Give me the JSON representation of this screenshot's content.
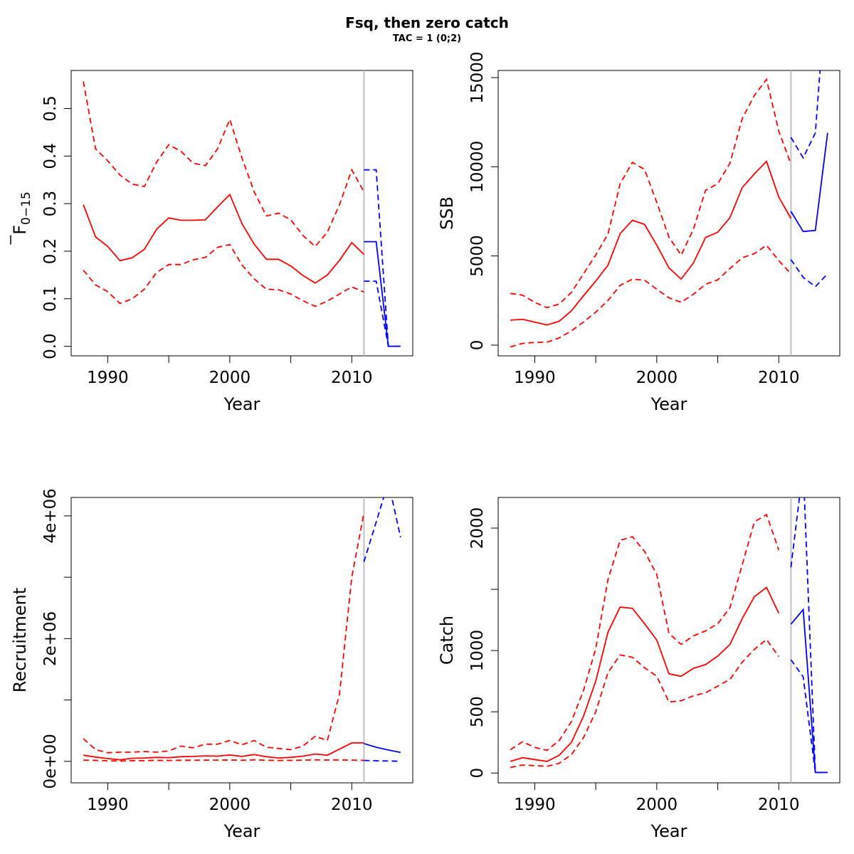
{
  "figure": {
    "title": "Fsq, then zero catch",
    "subtitle": "TAC = 1 (0;2)"
  },
  "colors": {
    "historical": "#ff0000",
    "forecast": "#0000ff",
    "divider": "#bebebe",
    "axis": "#000000"
  },
  "chart_data": [
    {
      "id": "f",
      "type": "line",
      "title": "",
      "xlabel": "Year",
      "ylabel": "F",
      "ylabel_sub": "0−15",
      "ylabel_overbar": true,
      "xlim": [
        1987,
        2015
      ],
      "ylim": [
        -0.02,
        0.58
      ],
      "xticks": [
        1990,
        1995,
        2000,
        2005,
        2010
      ],
      "xtick_labels": [
        "1990",
        "",
        "2000",
        "",
        "2010"
      ],
      "yticks": [
        0,
        0.1,
        0.2,
        0.3,
        0.4,
        0.5
      ],
      "ytick_labels": [
        "0.0",
        "0.1",
        "0.2",
        "0.3",
        "0.4",
        "0.5"
      ],
      "divider_x": 2011,
      "series": [
        {
          "style": "solid",
          "group": "historical",
          "x": [
            1988,
            1989,
            1990,
            1991,
            1992,
            1993,
            1994,
            1995,
            1996,
            1997,
            1998,
            1999,
            2000,
            2001,
            2002,
            2003,
            2004,
            2005,
            2006,
            2007,
            2008,
            2009,
            2010,
            2011
          ],
          "y": [
            0.298,
            0.23,
            0.21,
            0.18,
            0.186,
            0.204,
            0.246,
            0.27,
            0.265,
            0.265,
            0.266,
            0.293,
            0.319,
            0.258,
            0.215,
            0.183,
            0.183,
            0.169,
            0.149,
            0.133,
            0.15,
            0.181,
            0.218,
            0.193
          ]
        },
        {
          "style": "dashed",
          "group": "historical",
          "x": [
            1988,
            1989,
            1990,
            1991,
            1992,
            1993,
            1994,
            1995,
            1996,
            1997,
            1998,
            1999,
            2000,
            2001,
            2002,
            2003,
            2004,
            2005,
            2006,
            2007,
            2008,
            2009,
            2010,
            2011
          ],
          "y": [
            0.557,
            0.415,
            0.39,
            0.36,
            0.341,
            0.336,
            0.387,
            0.424,
            0.41,
            0.385,
            0.38,
            0.415,
            0.477,
            0.396,
            0.325,
            0.274,
            0.28,
            0.266,
            0.233,
            0.21,
            0.24,
            0.298,
            0.371,
            0.325
          ]
        },
        {
          "style": "dashed",
          "group": "historical",
          "x": [
            1988,
            1989,
            1990,
            1991,
            1992,
            1993,
            1994,
            1995,
            1996,
            1997,
            1998,
            1999,
            2000,
            2001,
            2002,
            2003,
            2004,
            2005,
            2006,
            2007,
            2008,
            2009,
            2010,
            2011
          ],
          "y": [
            0.16,
            0.129,
            0.115,
            0.09,
            0.1,
            0.12,
            0.155,
            0.172,
            0.172,
            0.182,
            0.187,
            0.208,
            0.214,
            0.171,
            0.142,
            0.12,
            0.119,
            0.11,
            0.096,
            0.084,
            0.095,
            0.11,
            0.125,
            0.114
          ]
        },
        {
          "style": "solid",
          "group": "forecast",
          "x": [
            2011,
            2012,
            2013,
            2014
          ],
          "y": [
            0.22,
            0.22,
            0,
            0
          ]
        },
        {
          "style": "dashed",
          "group": "forecast",
          "x": [
            2011,
            2012,
            2013,
            2014
          ],
          "y": [
            0.371,
            0.371,
            0,
            0
          ]
        },
        {
          "style": "dashed",
          "group": "forecast",
          "x": [
            2011,
            2012,
            2013,
            2014
          ],
          "y": [
            0.137,
            0.137,
            0,
            0
          ]
        }
      ]
    },
    {
      "id": "ssb",
      "type": "line",
      "title": "",
      "xlabel": "Year",
      "ylabel": "SSB",
      "xlim": [
        1987,
        2015
      ],
      "ylim": [
        -600,
        15400
      ],
      "xticks": [
        1990,
        1995,
        2000,
        2005,
        2010
      ],
      "xtick_labels": [
        "1990",
        "",
        "2000",
        "",
        "2010"
      ],
      "yticks": [
        0,
        5000,
        10000,
        15000
      ],
      "ytick_labels": [
        "0",
        "5000",
        "10000",
        "15000"
      ],
      "divider_x": 2011,
      "series": [
        {
          "style": "solid",
          "group": "historical",
          "x": [
            1988,
            1989,
            1990,
            1991,
            1992,
            1993,
            1994,
            1995,
            1996,
            1997,
            1998,
            1999,
            2000,
            2001,
            2002,
            2003,
            2004,
            2005,
            2006,
            2007,
            2008,
            2009,
            2010,
            2011
          ],
          "y": [
            1400,
            1450,
            1290,
            1130,
            1340,
            1920,
            2770,
            3590,
            4480,
            6250,
            7000,
            6770,
            5600,
            4330,
            3700,
            4600,
            6030,
            6330,
            7150,
            8830,
            9600,
            10300,
            8300,
            7100
          ]
        },
        {
          "style": "dashed",
          "group": "historical",
          "x": [
            1988,
            1989,
            1990,
            1991,
            1992,
            1993,
            1994,
            1995,
            1996,
            1997,
            1998,
            1999,
            2000,
            2001,
            2002,
            2003,
            2004,
            2005,
            2006,
            2007,
            2008,
            2009,
            2010,
            2011
          ],
          "y": [
            2900,
            2800,
            2400,
            2100,
            2300,
            2950,
            4000,
            5050,
            6230,
            9050,
            10250,
            9850,
            8000,
            6050,
            5050,
            6490,
            8680,
            9050,
            10200,
            12700,
            14000,
            14900,
            12000,
            10150
          ]
        },
        {
          "style": "dashed",
          "group": "historical",
          "x": [
            1988,
            1989,
            1990,
            1991,
            1992,
            1993,
            1994,
            1995,
            1996,
            1997,
            1998,
            1999,
            2000,
            2001,
            2002,
            2003,
            2004,
            2005,
            2006,
            2007,
            2008,
            2009,
            2010,
            2011
          ],
          "y": [
            -100,
            100,
            150,
            170,
            400,
            800,
            1300,
            1850,
            2500,
            3350,
            3700,
            3640,
            3130,
            2650,
            2400,
            2850,
            3410,
            3660,
            4300,
            4900,
            5130,
            5600,
            4740,
            4000
          ]
        },
        {
          "style": "solid",
          "group": "forecast",
          "x": [
            2011,
            2012,
            2013,
            2014
          ],
          "y": [
            7500,
            6370,
            6430,
            11900
          ]
        },
        {
          "style": "dashed",
          "group": "forecast",
          "x": [
            2011,
            2012,
            2013,
            2014
          ],
          "y": [
            11650,
            10500,
            11900,
            21000
          ]
        },
        {
          "style": "dashed",
          "group": "forecast",
          "x": [
            2011,
            2012,
            2013,
            2014
          ],
          "y": [
            4800,
            3800,
            3280,
            4000
          ]
        }
      ]
    },
    {
      "id": "recruitment",
      "type": "line",
      "title": "",
      "xlabel": "Year",
      "ylabel": "Recruitment",
      "xlim": [
        1987,
        2015
      ],
      "ylim": [
        -350000,
        4300000
      ],
      "xticks": [
        1990,
        1995,
        2000,
        2005,
        2010
      ],
      "xtick_labels": [
        "1990",
        "",
        "2000",
        "",
        "2010"
      ],
      "yticks": [
        0,
        1000000,
        2000000,
        3000000,
        4000000
      ],
      "ytick_labels": [
        "0e+00",
        "",
        "2e+06",
        "",
        "4e+06"
      ],
      "divider_x": 2011,
      "series": [
        {
          "style": "solid",
          "group": "historical",
          "x": [
            1988,
            1989,
            1990,
            1991,
            1992,
            1993,
            1994,
            1995,
            1996,
            1997,
            1998,
            1999,
            2000,
            2001,
            2002,
            2003,
            2004,
            2005,
            2006,
            2007,
            2008,
            2009,
            2010,
            2011
          ],
          "y": [
            100000,
            70000,
            45000,
            25000,
            50000,
            55000,
            65000,
            60000,
            75000,
            80000,
            90000,
            85000,
            105000,
            80000,
            110000,
            75000,
            55000,
            65000,
            85000,
            120000,
            100000,
            200000,
            300000,
            300000
          ]
        },
        {
          "style": "dashed",
          "group": "historical",
          "x": [
            1988,
            1989,
            1990,
            1991,
            1992,
            1993,
            1994,
            1995,
            1996,
            1997,
            1998,
            1999,
            2000,
            2001,
            2002,
            2003,
            2004,
            2005,
            2006,
            2007,
            2008,
            2009,
            2010,
            2011
          ],
          "y": [
            370000,
            190000,
            140000,
            150000,
            150000,
            160000,
            150000,
            170000,
            250000,
            220000,
            280000,
            280000,
            340000,
            270000,
            340000,
            230000,
            210000,
            190000,
            250000,
            410000,
            340000,
            1100000,
            3000000,
            4050000
          ]
        },
        {
          "style": "dashed",
          "group": "historical",
          "x": [
            1988,
            1989,
            1990,
            1991,
            1992,
            1993,
            1994,
            1995,
            1996,
            1997,
            1998,
            1999,
            2000,
            2001,
            2002,
            2003,
            2004,
            2005,
            2006,
            2007,
            2008,
            2009,
            2010,
            2011
          ],
          "y": [
            20000,
            15000,
            10000,
            5000,
            12000,
            12000,
            15000,
            14000,
            18000,
            18000,
            20000,
            20000,
            22000,
            18000,
            25000,
            18000,
            14000,
            15000,
            20000,
            25000,
            22000,
            25000,
            20000,
            15000
          ]
        },
        {
          "style": "solid",
          "group": "forecast",
          "x": [
            2011,
            2012,
            2013,
            2014
          ],
          "y": [
            290000,
            230000,
            185000,
            145000
          ]
        },
        {
          "style": "dashed",
          "group": "forecast",
          "x": [
            2011,
            2012,
            2013,
            2014
          ],
          "y": [
            3250000,
            3900000,
            4550000,
            3650000
          ]
        },
        {
          "style": "dashed",
          "group": "forecast",
          "x": [
            2011,
            2012,
            2013,
            2014
          ],
          "y": [
            15000,
            10000,
            5000,
            3000
          ]
        }
      ]
    },
    {
      "id": "catch",
      "type": "line",
      "title": "",
      "xlabel": "Year",
      "ylabel": "Catch",
      "xlim": [
        1987,
        2015
      ],
      "ylim": [
        -80,
        2250
      ],
      "xticks": [
        1990,
        1995,
        2000,
        2005,
        2010
      ],
      "xtick_labels": [
        "1990",
        "",
        "2000",
        "",
        "2010"
      ],
      "yticks": [
        0,
        500,
        1000,
        1500,
        2000
      ],
      "ytick_labels": [
        "0",
        "500",
        "1000",
        "",
        "2000"
      ],
      "divider_x": 2011,
      "series": [
        {
          "style": "solid",
          "group": "historical",
          "x": [
            1988,
            1989,
            1990,
            1991,
            1992,
            1993,
            1994,
            1995,
            1996,
            1997,
            1998,
            1999,
            2000,
            2001,
            2002,
            2003,
            2004,
            2005,
            2006,
            2007,
            2008,
            2009,
            2010
          ],
          "y": [
            95,
            125,
            110,
            95,
            145,
            250,
            465,
            750,
            1150,
            1355,
            1345,
            1220,
            1085,
            810,
            790,
            855,
            885,
            955,
            1050,
            1260,
            1440,
            1515,
            1305
          ]
        },
        {
          "style": "dashed",
          "group": "historical",
          "x": [
            1988,
            1989,
            1990,
            1991,
            1992,
            1993,
            1994,
            1995,
            1996,
            1997,
            1998,
            1999,
            2000,
            2001,
            2002,
            2003,
            2004,
            2005,
            2006,
            2007,
            2008,
            2009,
            2010
          ],
          "y": [
            190,
            255,
            210,
            185,
            265,
            420,
            675,
            1015,
            1580,
            1900,
            1930,
            1810,
            1620,
            1140,
            1050,
            1120,
            1160,
            1220,
            1350,
            1700,
            2050,
            2110,
            1820
          ]
        },
        {
          "style": "dashed",
          "group": "historical",
          "x": [
            1988,
            1989,
            1990,
            1991,
            1992,
            1993,
            1994,
            1995,
            1996,
            1997,
            1998,
            1999,
            2000,
            2001,
            2002,
            2003,
            2004,
            2005,
            2006,
            2007,
            2008,
            2009,
            2010
          ],
          "y": [
            45,
            65,
            60,
            55,
            80,
            150,
            290,
            500,
            820,
            965,
            945,
            860,
            790,
            580,
            590,
            630,
            655,
            710,
            765,
            905,
            1010,
            1090,
            950
          ]
        },
        {
          "style": "solid",
          "group": "forecast",
          "x": [
            2011,
            2012,
            2013,
            2014
          ],
          "y": [
            1215,
            1335,
            5,
            5
          ]
        },
        {
          "style": "dashed",
          "group": "forecast",
          "x": [
            2011,
            2012,
            2013,
            2014
          ],
          "y": [
            1680,
            2500,
            5,
            5
          ]
        },
        {
          "style": "dashed",
          "group": "forecast",
          "x": [
            2011,
            2012,
            2013,
            2014
          ],
          "y": [
            925,
            785,
            5,
            5
          ]
        }
      ]
    }
  ]
}
